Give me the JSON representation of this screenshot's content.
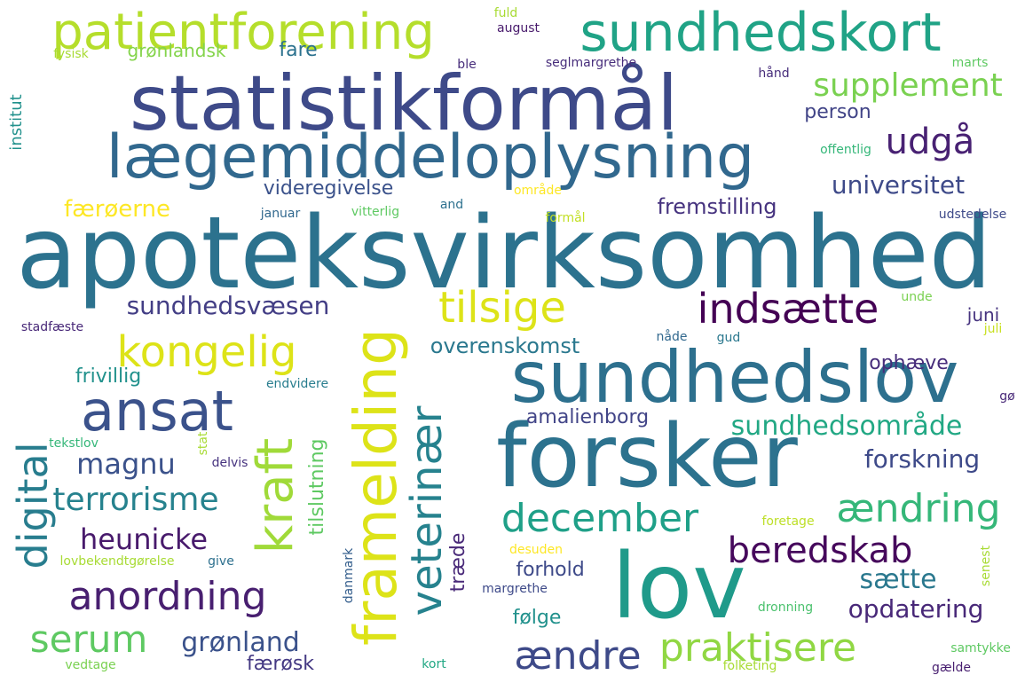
{
  "words": [
    {
      "text": "apoteksvirksomhed",
      "color": "#2c728e"
    },
    {
      "text": "statistikformål",
      "color": "#3e4a89"
    },
    {
      "text": "forsker",
      "color": "#2c728e"
    },
    {
      "text": "lov",
      "color": "#1f9a8a"
    },
    {
      "text": "sundhedslov",
      "color": "#2d708e"
    },
    {
      "text": "lægemiddeloplysning",
      "color": "#31688e"
    },
    {
      "text": "sundhedskort",
      "color": "#20a386"
    },
    {
      "text": "patientforening",
      "color": "#b5de2b"
    },
    {
      "text": "framelding",
      "color": "#dde318"
    },
    {
      "text": "ansat",
      "color": "#3b528b"
    },
    {
      "text": "kraft",
      "color": "#a0da39"
    },
    {
      "text": "veterinær",
      "color": "#26828e"
    },
    {
      "text": "digital",
      "color": "#287d8e"
    },
    {
      "text": "december",
      "color": "#1fa088"
    },
    {
      "text": "ændring",
      "color": "#35b779"
    },
    {
      "text": "indsætte",
      "color": "#440154"
    },
    {
      "text": "tilsige",
      "color": "#dde318"
    },
    {
      "text": "kongelig",
      "color": "#dde318"
    },
    {
      "text": "anordning",
      "color": "#481f70"
    },
    {
      "text": "praktisere",
      "color": "#90d743"
    },
    {
      "text": "ændre",
      "color": "#3e4a89"
    },
    {
      "text": "beredskab",
      "color": "#46085c"
    },
    {
      "text": "serum",
      "color": "#5ec962"
    },
    {
      "text": "udgå",
      "color": "#482173"
    },
    {
      "text": "supplement",
      "color": "#7ad151"
    },
    {
      "text": "terrorisme",
      "color": "#26828e"
    },
    {
      "text": "heunicke",
      "color": "#481a6c"
    },
    {
      "text": "magnu",
      "color": "#3b528b"
    },
    {
      "text": "grønland",
      "color": "#3b528b"
    },
    {
      "text": "sundhedsområde",
      "color": "#22a884"
    },
    {
      "text": "sundhedsvæsen",
      "color": "#433e85"
    },
    {
      "text": "forskning",
      "color": "#3e4a89"
    },
    {
      "text": "opdatering",
      "color": "#482878"
    },
    {
      "text": "sætte",
      "color": "#2a788e"
    },
    {
      "text": "universitet",
      "color": "#3e4a89"
    },
    {
      "text": "tilslutning",
      "color": "#5ec962"
    },
    {
      "text": "færøerne",
      "color": "#fde725"
    },
    {
      "text": "fremstilling",
      "color": "#46337f"
    },
    {
      "text": "overenskomst",
      "color": "#2a788e"
    },
    {
      "text": "videregivelse",
      "color": "#3b528b"
    },
    {
      "text": "frivillig",
      "color": "#21918c"
    },
    {
      "text": "amalienborg",
      "color": "#414487"
    },
    {
      "text": "forhold",
      "color": "#3e4a89"
    },
    {
      "text": "følge",
      "color": "#21918c"
    },
    {
      "text": "træde",
      "color": "#482878"
    },
    {
      "text": "person",
      "color": "#414487"
    },
    {
      "text": "færøsk",
      "color": "#443983"
    },
    {
      "text": "ophæve",
      "color": "#472d7b"
    },
    {
      "text": "juni",
      "color": "#46337f"
    },
    {
      "text": "grønlandsk",
      "color": "#84d44b"
    },
    {
      "text": "fare",
      "color": "#2c728e"
    },
    {
      "text": "institut",
      "color": "#21918c"
    },
    {
      "text": "august",
      "color": "#481a6c"
    },
    {
      "text": "fuld",
      "color": "#a8db34"
    },
    {
      "text": "fysisk",
      "color": "#a8db34"
    },
    {
      "text": "ble",
      "color": "#472d7b"
    },
    {
      "text": "seglmargrethe",
      "color": "#472d7b"
    },
    {
      "text": "marts",
      "color": "#5ec962"
    },
    {
      "text": "hånd",
      "color": "#472d7b"
    },
    {
      "text": "offentlig",
      "color": "#35b779"
    },
    {
      "text": "område",
      "color": "#fde725"
    },
    {
      "text": "januar",
      "color": "#31688e"
    },
    {
      "text": "vitterlig",
      "color": "#5ec962"
    },
    {
      "text": "and",
      "color": "#2d708e"
    },
    {
      "text": "formål",
      "color": "#c2df23"
    },
    {
      "text": "udstedelse",
      "color": "#3e4a89"
    },
    {
      "text": "stadfæste",
      "color": "#482878"
    },
    {
      "text": "unde",
      "color": "#7ad151"
    },
    {
      "text": "nåde",
      "color": "#31688e"
    },
    {
      "text": "gud",
      "color": "#2a788e"
    },
    {
      "text": "juli",
      "color": "#c8e020"
    },
    {
      "text": "endvidere",
      "color": "#287d8e"
    },
    {
      "text": "gø",
      "color": "#482878"
    },
    {
      "text": "tekstlov",
      "color": "#35b779"
    },
    {
      "text": "stat",
      "color": "#a8db34"
    },
    {
      "text": "delvis",
      "color": "#46337f"
    },
    {
      "text": "foretage",
      "color": "#bddf26"
    },
    {
      "text": "lovbekendtgørelse",
      "color": "#a8db34"
    },
    {
      "text": "give",
      "color": "#2d708e"
    },
    {
      "text": "danmark",
      "color": "#355f8d"
    },
    {
      "text": "desuden",
      "color": "#fde725"
    },
    {
      "text": "senest",
      "color": "#a8db34"
    },
    {
      "text": "margrethe",
      "color": "#3e4a89"
    },
    {
      "text": "dronning",
      "color": "#4ac16d"
    },
    {
      "text": "samtykke",
      "color": "#5ec962"
    },
    {
      "text": "vedtage",
      "color": "#7ad151"
    },
    {
      "text": "kort",
      "color": "#22a884"
    },
    {
      "text": "folketing",
      "color": "#a8db34"
    },
    {
      "text": "gælde",
      "color": "#481f70"
    }
  ]
}
